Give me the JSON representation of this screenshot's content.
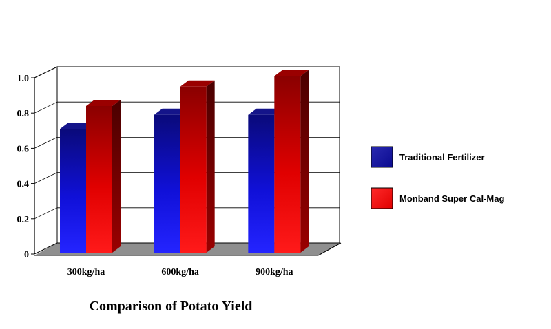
{
  "chart_data": {
    "type": "bar",
    "title": "Comparison of  Potato Yield",
    "categories": [
      "300kg/ha",
      "600kg/ha",
      "900kg/ha"
    ],
    "series": [
      {
        "name": "Traditional Fertilizer",
        "values": [
          0.71,
          0.79,
          0.79
        ],
        "color": "#1a1aff"
      },
      {
        "name": "Monband Super Cal-Mag",
        "values": [
          0.84,
          0.95,
          1.01
        ],
        "color": "#ff0a0a"
      }
    ],
    "ylim": [
      0,
      1.0
    ],
    "yticks": [
      "0",
      "0.2",
      "0.4",
      "0.6",
      "0.8",
      "1.0"
    ],
    "grid": true,
    "legend_position": "right",
    "style": "3d"
  }
}
